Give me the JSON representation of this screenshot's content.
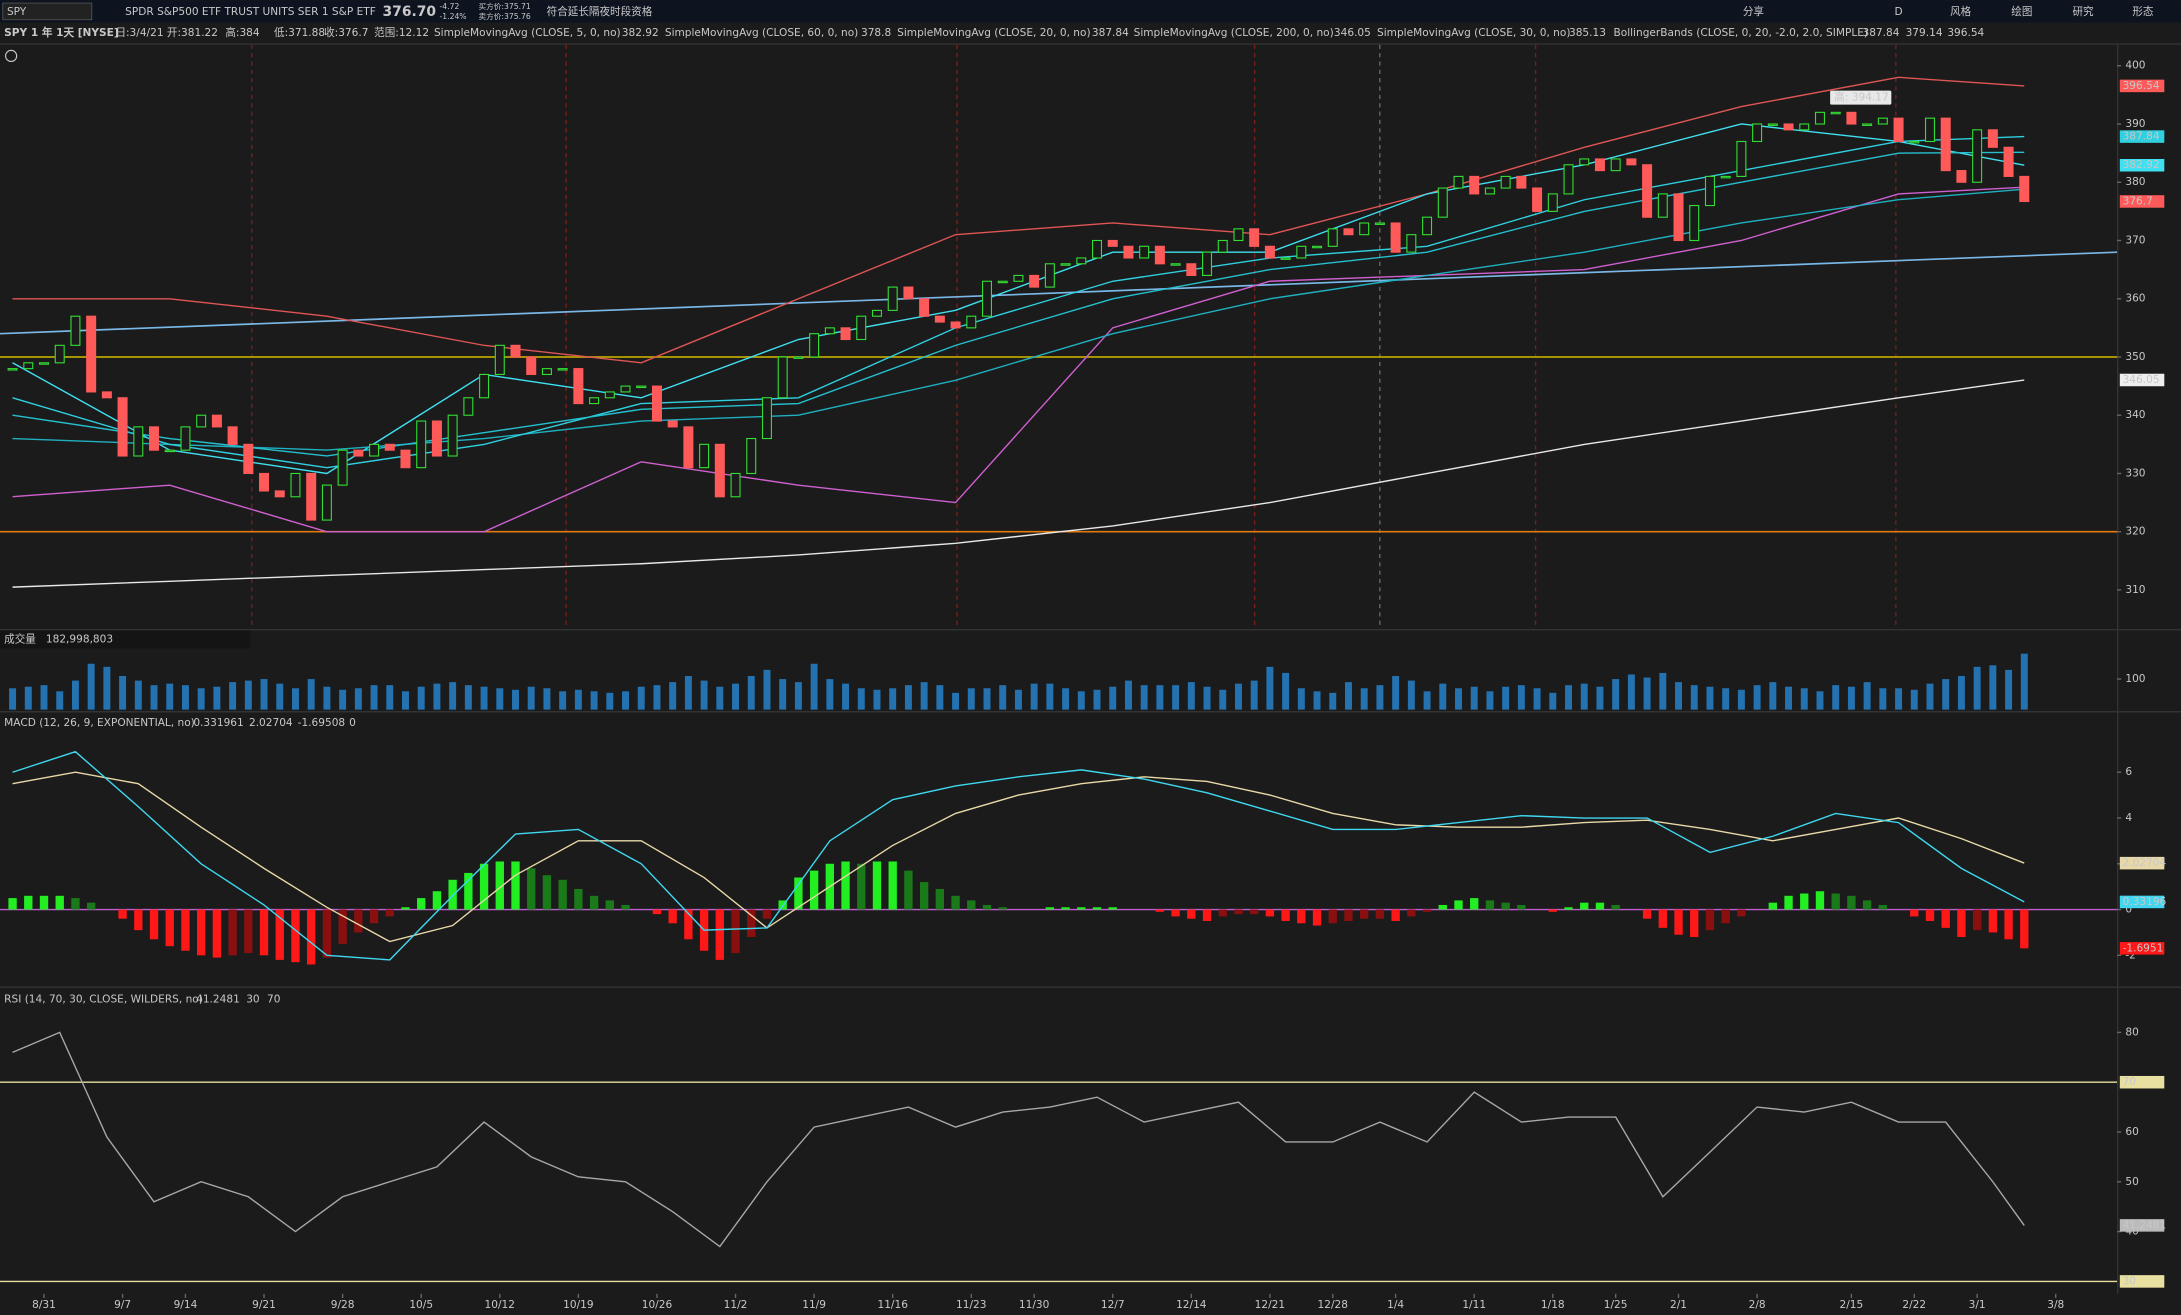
{
  "header": {
    "symbol": "SPY",
    "description": "SPDR S&P500 ETF TRUST UNITS SER 1 S&P ETF",
    "last": "376.70",
    "change": "-4.72",
    "change_pct": "-1.24%",
    "bid": "买方价:375.71",
    "ask": "卖方价:375.76",
    "notice": "符合延长隔夜时段资格",
    "tools": [
      "分享",
      "D",
      "风格",
      "绘图",
      "研究",
      "形态"
    ]
  },
  "info": {
    "title": "SPY 1 年 1天 [NYSE]",
    "date": "日:3/4/21",
    "open": "开:381.22",
    "high": "高:384",
    "low": "低:371.88",
    "close": "收:376.7",
    "range": "范围:12.12"
  },
  "chart_data": {
    "type": "candlestick",
    "xlim": [
      -0.8,
      133.9
    ],
    "xticks": [
      {
        "value": 2,
        "label": "8/31"
      },
      {
        "value": 7,
        "label": "9/7"
      },
      {
        "value": 11,
        "label": "9/14"
      },
      {
        "value": 16,
        "label": "9/21"
      },
      {
        "value": 21,
        "label": "9/28"
      },
      {
        "value": 26,
        "label": "10/5"
      },
      {
        "value": 31,
        "label": "10/12"
      },
      {
        "value": 36,
        "label": "10/19"
      },
      {
        "value": 41,
        "label": "10/26"
      },
      {
        "value": 46,
        "label": "11/2"
      },
      {
        "value": 51,
        "label": "11/9"
      },
      {
        "value": 56,
        "label": "11/16"
      },
      {
        "value": 61,
        "label": "11/23"
      },
      {
        "value": 65,
        "label": "11/30"
      },
      {
        "value": 70,
        "label": "12/7"
      },
      {
        "value": 75,
        "label": "12/14"
      },
      {
        "value": 80,
        "label": "12/21"
      },
      {
        "value": 84,
        "label": "12/28"
      },
      {
        "value": 88,
        "label": "1/4"
      },
      {
        "value": 93,
        "label": "1/11"
      },
      {
        "value": 98,
        "label": "1/18"
      },
      {
        "value": 102,
        "label": "1/25"
      },
      {
        "value": 106,
        "label": "2/1"
      },
      {
        "value": 111,
        "label": "2/8"
      },
      {
        "value": 117,
        "label": "2/15"
      },
      {
        "value": 121,
        "label": "2/22"
      },
      {
        "value": 125,
        "label": "3/1"
      },
      {
        "value": 130,
        "label": "3/8"
      }
    ],
    "price": {
      "ylim": [
        303.3,
        403.6
      ],
      "yticks": [
        310,
        320,
        330,
        340,
        350,
        360,
        370,
        380,
        390,
        400
      ],
      "closes": [
        348,
        349,
        349,
        352,
        357,
        344,
        343,
        333,
        338,
        334,
        334,
        338,
        340,
        338,
        335,
        330,
        327,
        326,
        330,
        322,
        328,
        334,
        333,
        335,
        334,
        331,
        339,
        333,
        340,
        343,
        347,
        352,
        350,
        347,
        348,
        348,
        342,
        343,
        344,
        345,
        345,
        339,
        338,
        331,
        335,
        326,
        330,
        336,
        343,
        350,
        350,
        354,
        355,
        353,
        357,
        358,
        362,
        360,
        357,
        356,
        355,
        357,
        363,
        363,
        364,
        362,
        366,
        366,
        367,
        370,
        369,
        367,
        369,
        366,
        366,
        364,
        368,
        370,
        372,
        369,
        367,
        367,
        369,
        369,
        372,
        371,
        373,
        373,
        368,
        371,
        374,
        379,
        381,
        378,
        379,
        381,
        379,
        375,
        378,
        383,
        384,
        382,
        384,
        383,
        374,
        378,
        370,
        376,
        381,
        381,
        387,
        390,
        390,
        389,
        390,
        392,
        392,
        390,
        390,
        391,
        387,
        387,
        391,
        382,
        380,
        389,
        386,
        381,
        376.7
      ],
      "up_color": "#33dd33",
      "down_color": "#ff5a5a",
      "high_label": "高: 394.17",
      "high": 394.17,
      "high_x": 116,
      "overlay_x": [
        0,
        10,
        20,
        30,
        40,
        50,
        60,
        70,
        80,
        90,
        100,
        110,
        120,
        128
      ],
      "overlays": [
        {
          "name": "SimpleMovingAvg (CLOSE, 5, 0, no)",
          "color": "#3fe0f0",
          "values": [
            349,
            334,
            330,
            347,
            343,
            353,
            358,
            368,
            368,
            378,
            383,
            390,
            387,
            382.92
          ],
          "axis_box": true
        },
        {
          "name": "SimpleMovingAvg (CLOSE, 60, 0, no)",
          "color": "#1fb0c0",
          "values": [
            336,
            335,
            334,
            336,
            339,
            340,
            346,
            354,
            360,
            364,
            368,
            373,
            377,
            378.8
          ],
          "axis_box": false
        },
        {
          "name": "SimpleMovingAvg (CLOSE, 20, 0, no)",
          "color": "#2fd0e0",
          "values": [
            343,
            335,
            331,
            335,
            342,
            343,
            355,
            363,
            367,
            369,
            377,
            382,
            387,
            387.84
          ],
          "axis_box": true
        },
        {
          "name": "SimpleMovingAvg (CLOSE, 200, 0, no)",
          "color": "#e8e8e8",
          "values": [
            310.5,
            311.5,
            312.5,
            313.5,
            314.5,
            316,
            318,
            321,
            325,
            330,
            335,
            339,
            343,
            346.05
          ],
          "axis_box": true
        },
        {
          "name": "SimpleMovingAvg (CLOSE, 30, 0, no)",
          "color": "#25c0d0",
          "values": [
            340,
            336,
            333,
            337,
            341,
            342,
            352,
            360,
            365,
            368,
            375,
            380,
            385,
            385.13
          ],
          "axis_box": false
        }
      ],
      "bollinger": {
        "name": "BollingerBands (CLOSE, 0, 20, -2.0, 2.0, SIMPLE)",
        "upper_color": "#e05555",
        "lower_color": "#d060d0",
        "upper": [
          360,
          360,
          357,
          352,
          349,
          360,
          371,
          373,
          371,
          378,
          386,
          393,
          398,
          396.54
        ],
        "lower": [
          326,
          328,
          320,
          320,
          332,
          328,
          325,
          355,
          363,
          364,
          365,
          370,
          378,
          379.14
        ]
      },
      "levels": [
        {
          "value": 350,
          "color": "#b8a400"
        },
        {
          "value": 320,
          "color": "#e07a10"
        }
      ],
      "trendline": {
        "x": [
          -0.8,
          133.9
        ],
        "values": [
          354,
          368
        ],
        "color": "#7ab8e8"
      }
    },
    "volume": {
      "label": "成交量",
      "readout": "182,998,803",
      "ylim": [
        0,
        200
      ],
      "yticks": [
        100
      ],
      "color": "#2472b0",
      "values": [
        70,
        75,
        80,
        60,
        95,
        150,
        140,
        110,
        95,
        80,
        85,
        80,
        70,
        75,
        90,
        95,
        100,
        85,
        70,
        100,
        75,
        65,
        70,
        80,
        80,
        60,
        75,
        85,
        90,
        80,
        75,
        70,
        65,
        75,
        70,
        60,
        65,
        60,
        55,
        60,
        75,
        80,
        90,
        110,
        95,
        75,
        85,
        110,
        130,
        100,
        90,
        150,
        100,
        85,
        70,
        65,
        70,
        80,
        90,
        80,
        55,
        70,
        70,
        80,
        65,
        85,
        85,
        70,
        60,
        65,
        75,
        95,
        80,
        80,
        80,
        90,
        75,
        65,
        85,
        95,
        140,
        120,
        70,
        60,
        55,
        90,
        70,
        80,
        110,
        95,
        60,
        85,
        70,
        75,
        60,
        75,
        80,
        70,
        55,
        80,
        85,
        75,
        100,
        115,
        105,
        120,
        90,
        80,
        75,
        70,
        65,
        80,
        90,
        75,
        70,
        60,
        80,
        75,
        90,
        70,
        70,
        65,
        85,
        100,
        110,
        140,
        145,
        130,
        183
      ]
    },
    "macd": {
      "label": "MACD (12, 26, 9, EXPONENTIAL, no)",
      "ylim": [
        -3.3,
        7.7
      ],
      "yticks": [
        -2,
        0,
        2,
        4,
        6
      ],
      "zero": 0,
      "x": [
        0,
        4,
        8,
        12,
        16,
        20,
        24,
        28,
        32,
        36,
        40,
        44,
        48,
        52,
        56,
        60,
        64,
        68,
        72,
        76,
        80,
        84,
        88,
        92,
        96,
        100,
        104,
        108,
        112,
        116,
        120,
        124,
        128
      ],
      "value": [
        6.0,
        6.9,
        4.5,
        2.0,
        0.2,
        -2.0,
        -2.2,
        0.6,
        3.3,
        3.5,
        2.0,
        -0.9,
        -0.8,
        3.0,
        4.8,
        5.4,
        5.8,
        6.1,
        5.7,
        5.1,
        4.3,
        3.5,
        3.5,
        3.8,
        4.1,
        4.0,
        4.0,
        2.5,
        3.2,
        4.2,
        3.8,
        1.8,
        0.331961
      ],
      "avg": [
        5.5,
        6.0,
        5.5,
        3.6,
        1.8,
        0.1,
        -1.4,
        -0.7,
        1.5,
        3.0,
        3.0,
        1.4,
        -0.8,
        1.0,
        2.8,
        4.2,
        5.0,
        5.5,
        5.8,
        5.6,
        5.0,
        4.2,
        3.7,
        3.6,
        3.6,
        3.8,
        3.9,
        3.5,
        3.0,
        3.5,
        4.0,
        3.1,
        2.02704
      ],
      "value_color": "#3fd8f0",
      "avg_color": "#e8d8a8",
      "zero_color": "#c060d0",
      "diff": [
        0.5,
        0.6,
        0.6,
        0.6,
        0.5,
        0.3,
        0,
        -0.4,
        -0.9,
        -1.3,
        -1.6,
        -1.8,
        -2.0,
        -2.1,
        -2.0,
        -1.9,
        -2.0,
        -2.2,
        -2.3,
        -2.4,
        -2.1,
        -1.5,
        -1.0,
        -0.6,
        -0.3,
        0.1,
        0.5,
        0.8,
        1.3,
        1.6,
        2.0,
        2.1,
        2.1,
        1.8,
        1.5,
        1.3,
        0.9,
        0.6,
        0.4,
        0.2,
        0,
        -0.2,
        -0.6,
        -1.3,
        -1.8,
        -2.2,
        -1.9,
        -1.2,
        -0.4,
        0.4,
        1.4,
        1.7,
        2.0,
        2.1,
        2.0,
        2.1,
        2.1,
        1.7,
        1.2,
        0.9,
        0.6,
        0.4,
        0.2,
        0.1,
        0,
        0,
        0.1,
        0.1,
        0.1,
        0.1,
        0.1,
        0,
        0,
        -0.1,
        -0.3,
        -0.4,
        -0.5,
        -0.3,
        -0.2,
        -0.2,
        -0.3,
        -0.5,
        -0.6,
        -0.7,
        -0.6,
        -0.5,
        -0.4,
        -0.4,
        -0.5,
        -0.3,
        -0.1,
        0.2,
        0.4,
        0.5,
        0.4,
        0.3,
        0.2,
        0,
        -0.1,
        0.1,
        0.3,
        0.3,
        0.2,
        0,
        -0.4,
        -0.8,
        -1.1,
        -1.2,
        -0.9,
        -0.6,
        -0.3,
        0,
        0.3,
        0.6,
        0.7,
        0.8,
        0.7,
        0.6,
        0.4,
        0.2,
        0,
        -0.3,
        -0.5,
        -0.8,
        -1.2,
        -0.9,
        -1.0,
        -1.3,
        -1.69508
      ],
      "axis_labels": {
        "value": "0.33196",
        "diff": "-1.6951"
      }
    },
    "rsi": {
      "label": "RSI (14, 70, 30, CLOSE, WILDERS, no)",
      "ylim": [
        27.5,
        84.2
      ],
      "yticks": [
        40,
        50,
        60,
        80
      ],
      "color": "#a8a8a8",
      "level_color": "#e8e0a0",
      "levels": [
        30,
        70
      ],
      "x": [
        0,
        3,
        6,
        9,
        12,
        15,
        18,
        21,
        24,
        27,
        30,
        33,
        36,
        39,
        42,
        45,
        48,
        51,
        54,
        57,
        60,
        63,
        66,
        69,
        72,
        75,
        78,
        81,
        84,
        87,
        90,
        93,
        96,
        99,
        102,
        105,
        108,
        111,
        114,
        117,
        120,
        123,
        126,
        128
      ],
      "values": [
        76,
        80,
        59,
        46,
        50,
        47,
        40,
        47,
        50,
        53,
        62,
        55,
        51,
        50,
        44,
        37,
        50,
        61,
        63,
        65,
        61,
        64,
        65,
        67,
        62,
        64,
        66,
        58,
        58,
        62,
        58,
        68,
        62,
        63,
        63,
        47,
        56,
        65,
        64,
        66,
        62,
        62,
        50,
        41.2481
      ],
      "early_color": "#ff6a6a"
    }
  }
}
